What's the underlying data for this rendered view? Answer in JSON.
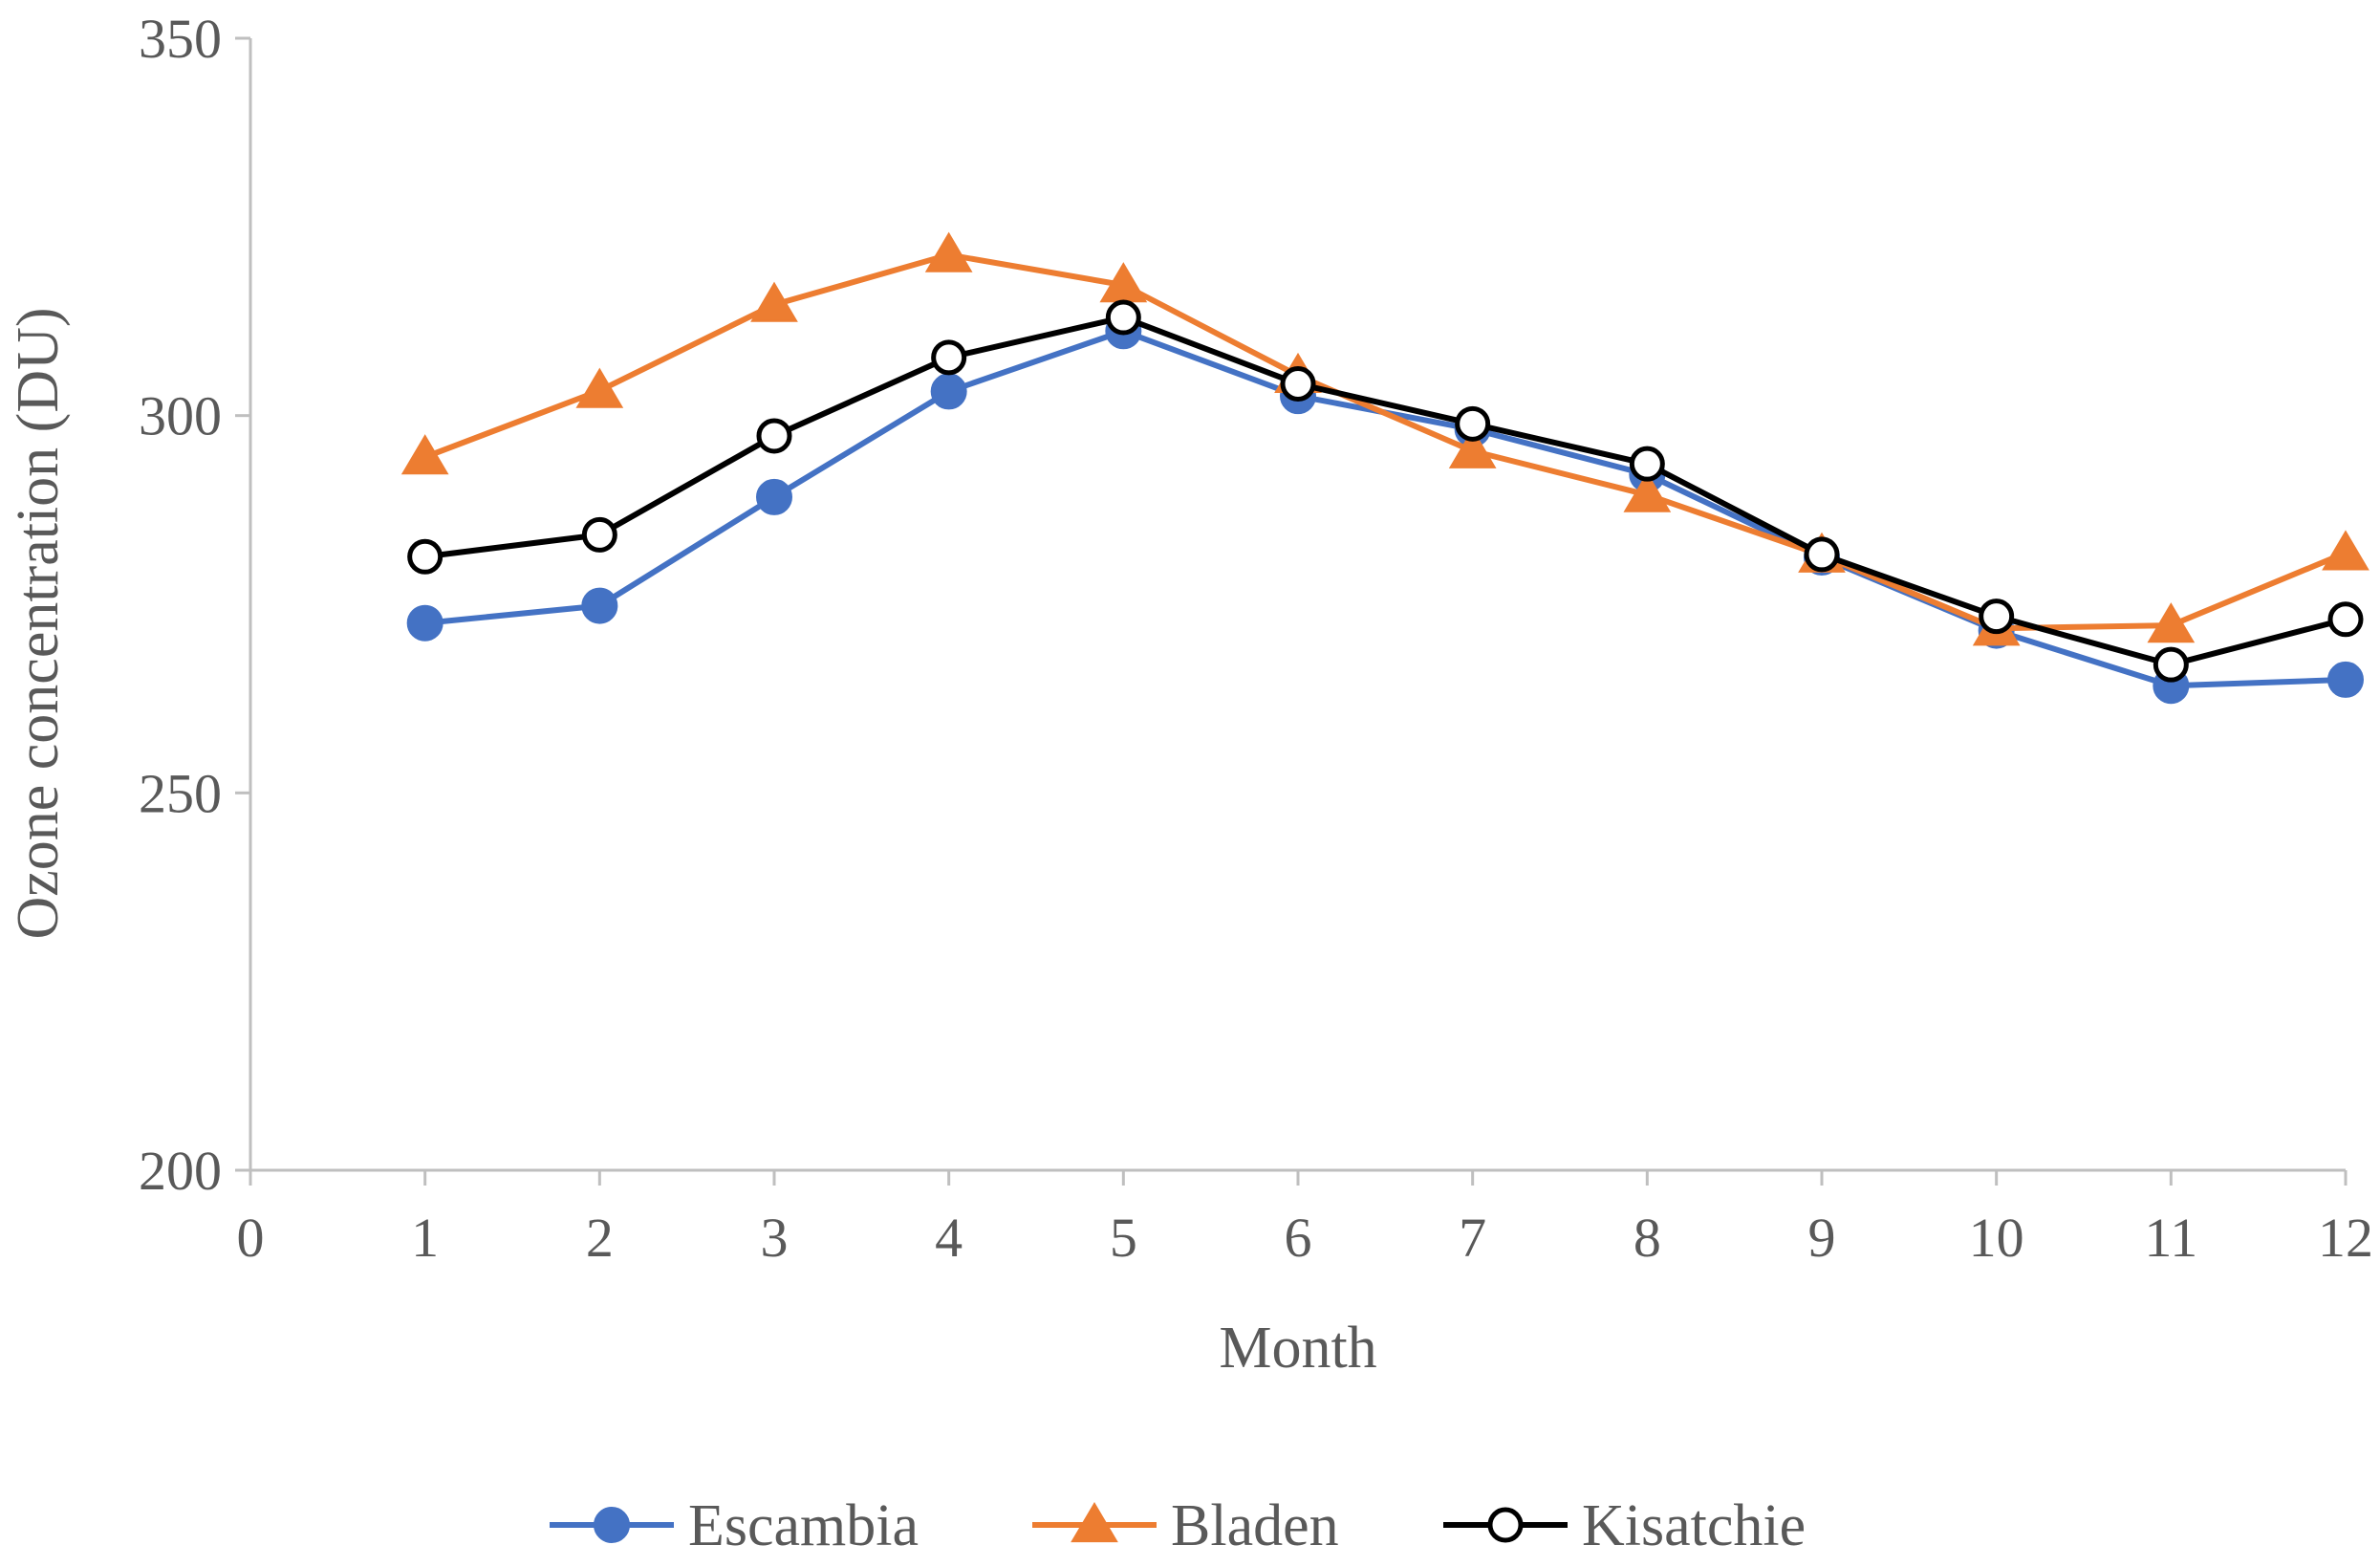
{
  "chart_data": {
    "type": "line",
    "title": "",
    "xlabel": "Month",
    "ylabel": "Ozone concentration (DU)",
    "xlim": [
      0,
      12
    ],
    "ylim": [
      200,
      350
    ],
    "x_ticks": [
      "0",
      "1",
      "2",
      "3",
      "4",
      "5",
      "6",
      "7",
      "8",
      "9",
      "10",
      "11",
      "12"
    ],
    "y_ticks": [
      "200",
      "250",
      "300",
      "350"
    ],
    "grid": false,
    "legend_position": "bottom",
    "x": [
      1,
      2,
      3,
      4,
      5,
      6,
      7,
      8,
      9,
      10,
      11,
      12
    ],
    "series": [
      {
        "name": "Escambia",
        "color": "#4472C4",
        "marker": "filled-circle",
        "values": [
          272.5,
          274.8,
          289.2,
          303.2,
          311.2,
          302.6,
          298.2,
          292.2,
          281.2,
          271.5,
          264.2,
          265.0
        ]
      },
      {
        "name": "Bladen",
        "color": "#ED7D31",
        "marker": "filled-triangle",
        "values": [
          294.5,
          303.3,
          314.7,
          321.3,
          317.3,
          305.3,
          295.3,
          289.5,
          281.5,
          271.8,
          272.2,
          281.8
        ]
      },
      {
        "name": "Kisatchie",
        "color": "#000000",
        "marker": "open-circle",
        "values": [
          281.3,
          284.2,
          297.3,
          307.7,
          313.0,
          304.2,
          298.9,
          293.6,
          281.6,
          273.4,
          267.0,
          273.0
        ]
      }
    ]
  }
}
